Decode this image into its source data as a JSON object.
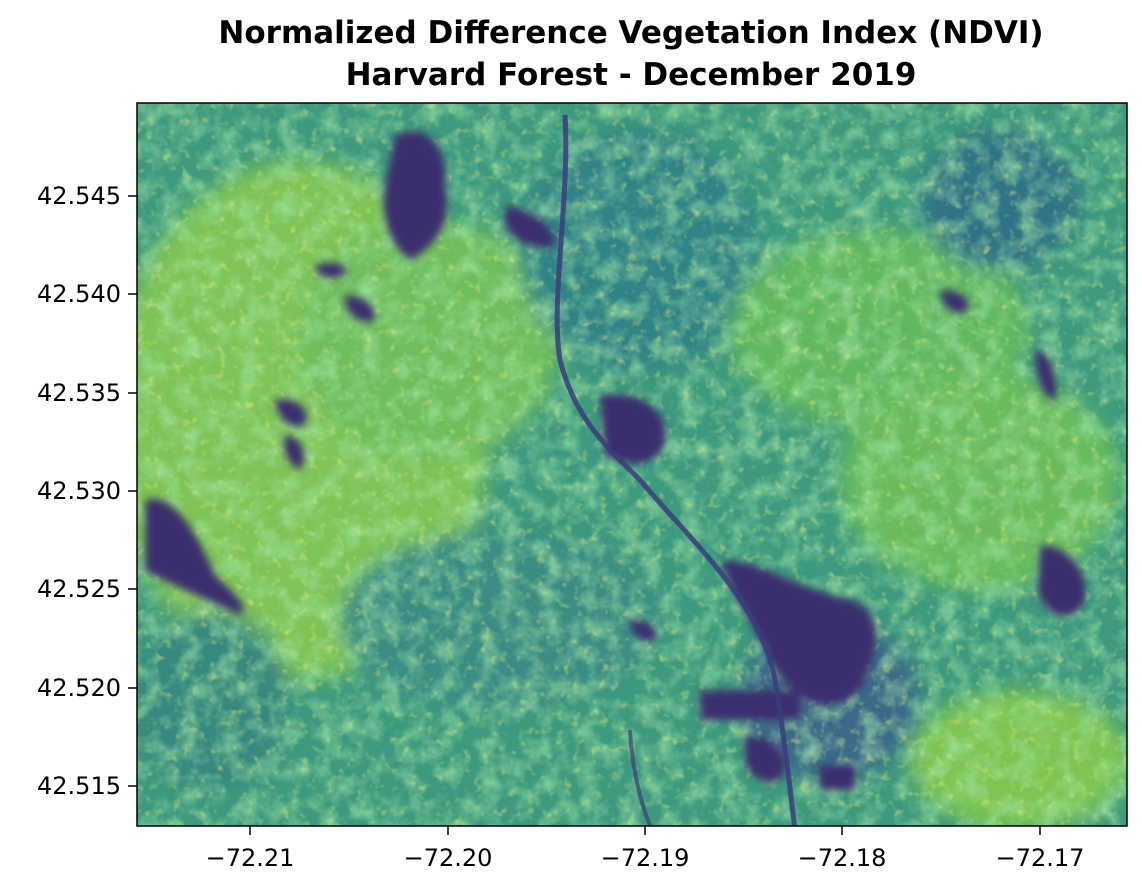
{
  "title": "Normalized Difference Vegetation Index (NDVI)",
  "subtitle": "Harvard Forest - December 2019",
  "map": {
    "colormap": [
      "#440154",
      "#3b528b",
      "#21918c",
      "#5ec962",
      "#fde725"
    ],
    "extent": {
      "lon": [
        -72.2153,
        -72.1656
      ],
      "lat": [
        42.5128,
        42.5495
      ]
    }
  },
  "x_ticks": [
    "−72.21",
    "−72.20",
    "−72.19",
    "−72.18",
    "−72.17"
  ],
  "y_ticks": [
    "42.545",
    "42.540",
    "42.535",
    "42.530",
    "42.525",
    "42.520",
    "42.515"
  ]
}
